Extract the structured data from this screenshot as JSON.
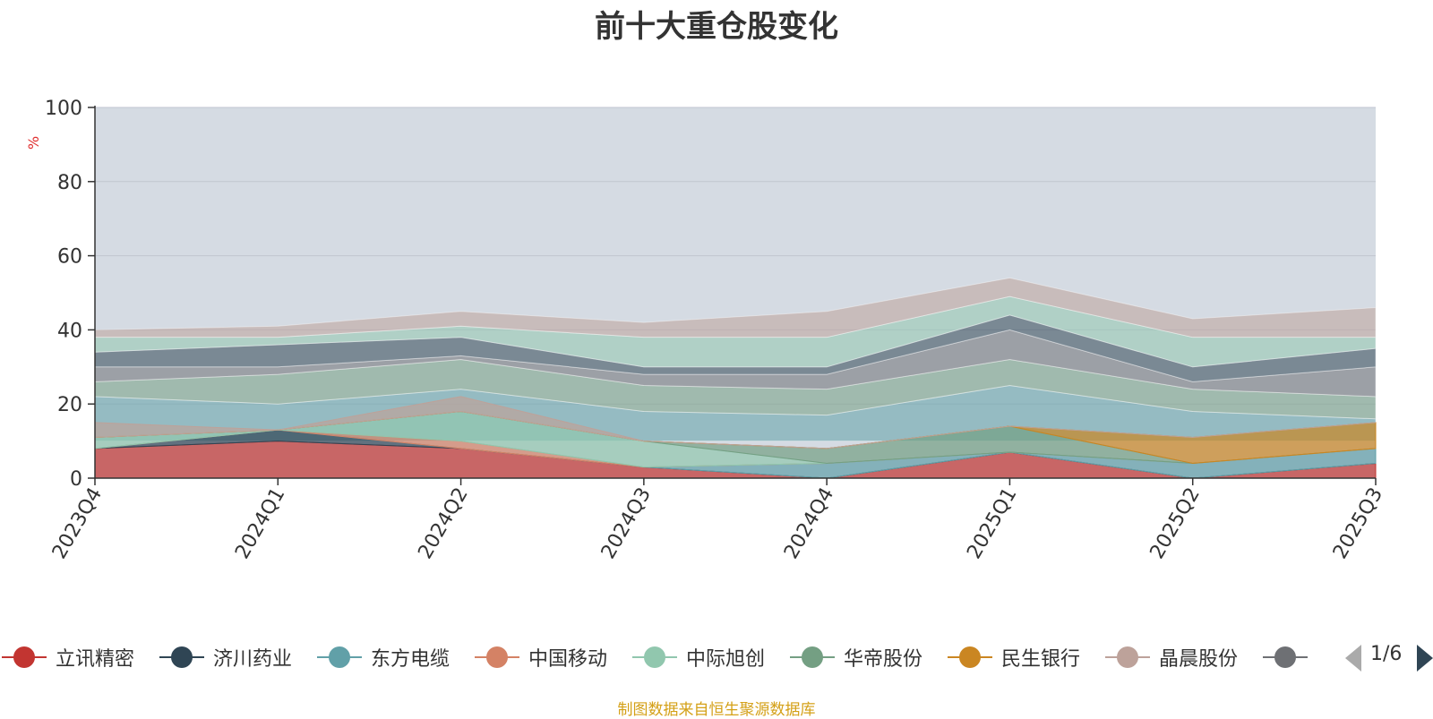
{
  "chart_data": {
    "type": "area",
    "title": "前十大重仓股变化",
    "ylabel": "%",
    "ylim": [
      0,
      100
    ],
    "yticks": [
      0,
      20,
      40,
      60,
      80,
      100
    ],
    "categories": [
      "2023Q4",
      "2024Q1",
      "2024Q2",
      "2024Q3",
      "2024Q4",
      "2025Q1",
      "2025Q2",
      "2025Q3"
    ],
    "grid": true,
    "legend_position": "bottom",
    "series": [
      {
        "name": "立讯精密",
        "color": "#c23531",
        "values": [
          8,
          10,
          8,
          3,
          0,
          7,
          0,
          4
        ]
      },
      {
        "name": "济川药业",
        "color": "#2f4554",
        "values": [
          0,
          3,
          0,
          0,
          0,
          0,
          0,
          0
        ]
      },
      {
        "name": "东方电缆",
        "color": "#61a0a8",
        "values": [
          0,
          0,
          0,
          0,
          4,
          0,
          4,
          4
        ]
      },
      {
        "name": "中国移动",
        "color": "#d48265",
        "values": [
          0,
          0,
          2,
          0,
          0,
          0,
          0,
          0
        ]
      },
      {
        "name": "中际旭创",
        "color": "#91c7ae",
        "values": [
          3,
          0,
          8,
          7,
          0,
          0,
          0,
          0
        ]
      },
      {
        "name": "华帝股份",
        "color": "#749f83",
        "values": [
          0,
          0,
          0,
          0,
          4,
          7,
          0,
          0
        ]
      },
      {
        "name": "民生银行",
        "color": "#ca8622",
        "values": [
          0,
          0,
          0,
          0,
          0,
          0,
          7,
          7
        ]
      },
      {
        "name": "晶晨股份",
        "color": "#bda29a",
        "values": [
          4,
          0,
          4,
          0,
          0,
          0,
          0,
          0
        ]
      }
    ],
    "hidden_series_colors": [
      "#6e7074",
      "#546570",
      "#c4ccd3"
    ]
  },
  "legend": {
    "items": [
      {
        "name": "立讯精密",
        "color": "#c23531"
      },
      {
        "name": "济川药业",
        "color": "#2f4554"
      },
      {
        "name": "东方电缆",
        "color": "#61a0a8"
      },
      {
        "name": "中国移动",
        "color": "#d48265"
      },
      {
        "name": "中际旭创",
        "color": "#91c7ae"
      },
      {
        "name": "华帝股份",
        "color": "#749f83"
      },
      {
        "name": "民生银行",
        "color": "#ca8622"
      },
      {
        "name": "晶晨股份",
        "color": "#bda29a"
      },
      {
        "name": "",
        "color": "#6e7074"
      }
    ],
    "page_indicator": "1/6"
  },
  "source_note": "制图数据来自恒生聚源数据库"
}
